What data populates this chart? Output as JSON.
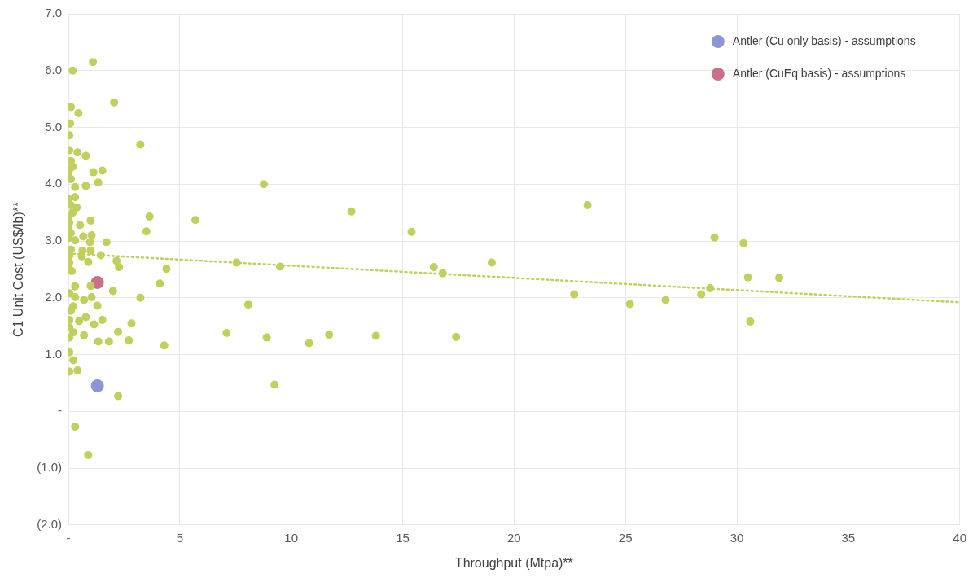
{
  "chart_data": {
    "type": "scatter",
    "xlabel": "Throughput (Mtpa)**",
    "ylabel": "C1 Unit Cost (US$/lb)**",
    "xlim": [
      0,
      40
    ],
    "xticks": [
      {
        "value": 0,
        "label": "-"
      },
      5,
      10,
      15,
      20,
      25,
      30,
      35,
      40
    ],
    "ylim": [
      -2,
      7
    ],
    "yticks": [
      {
        "value": -2,
        "label": "(2.0)"
      },
      {
        "value": -1,
        "label": "(1.0)"
      },
      {
        "value": 0,
        "label": "-"
      },
      {
        "value": 1,
        "label": "1.0"
      },
      {
        "value": 2,
        "label": "2.0"
      },
      {
        "value": 3,
        "label": "3.0"
      },
      {
        "value": 4,
        "label": "4.0"
      },
      {
        "value": 5,
        "label": "5.0"
      },
      {
        "value": 6,
        "label": "6.0"
      },
      {
        "value": 7,
        "label": "7.0"
      }
    ],
    "grid": true,
    "legend": "top right",
    "marker": "circle",
    "series": [
      {
        "color": "#c2cf5c",
        "x": [
          8.77,
          12.7,
          15.4,
          23.3,
          22.7,
          25.2,
          26.8,
          28.4,
          28.8,
          29.0,
          30.3,
          30.5,
          31.9,
          30.6,
          5.7,
          3.64,
          3.5,
          7.55,
          9.5,
          4.4,
          4.1,
          16.4,
          16.8,
          19.0,
          8.07,
          7.1,
          8.9,
          10.8,
          11.7,
          13.8,
          17.4,
          4.3,
          9.25,
          1.1,
          0.19,
          2.05,
          0.11,
          0.45,
          0.07,
          0.04,
          3.23,
          0.04,
          0.41,
          0.78,
          0.11,
          0.19,
          0.04,
          1.12,
          1.52,
          1.34,
          0,
          0.11,
          0.3,
          0.78,
          0,
          0.3,
          0.11,
          0.37,
          0.19,
          0,
          1.0,
          0,
          0.04,
          0.52,
          0.11,
          0.67,
          1.04,
          0,
          0.3,
          0.97,
          1.71,
          0.11,
          0.63,
          1.0,
          0.04,
          0.6,
          1.45,
          0.04,
          0.89,
          2.16,
          2.27,
          0.04,
          0.15,
          0.3,
          1.0,
          2.0,
          0.04,
          0.3,
          1.04,
          0.7,
          3.23,
          1.3,
          0.22,
          0.11,
          0.04,
          0.48,
          0.78,
          1.52,
          2.83,
          1.15,
          0.04,
          0.22,
          0.04,
          0.7,
          2.23,
          1.34,
          1.82,
          2.71,
          0.04,
          0.22,
          0.04,
          0.41,
          2.23,
          0.3,
          0.89
        ],
        "values": [
          4.0,
          3.52,
          3.16,
          3.63,
          2.06,
          1.89,
          1.96,
          2.06,
          2.17,
          3.06,
          2.96,
          2.36,
          2.35,
          1.58,
          3.37,
          3.43,
          3.17,
          2.62,
          2.55,
          2.51,
          2.25,
          2.54,
          2.43,
          2.62,
          1.88,
          1.38,
          1.3,
          1.2,
          1.35,
          1.33,
          1.31,
          1.16,
          0.47,
          6.15,
          6.0,
          5.44,
          5.36,
          5.25,
          5.07,
          4.86,
          4.7,
          4.6,
          4.56,
          4.5,
          4.41,
          4.31,
          4.26,
          4.21,
          4.24,
          4.03,
          4.17,
          4.09,
          3.95,
          3.97,
          3.74,
          3.77,
          3.63,
          3.59,
          3.5,
          3.41,
          3.36,
          3.23,
          3.32,
          3.28,
          3.14,
          3.08,
          3.1,
          3.05,
          3.01,
          2.98,
          2.98,
          2.85,
          2.83,
          2.83,
          2.74,
          2.73,
          2.75,
          2.62,
          2.63,
          2.65,
          2.54,
          2.51,
          2.47,
          2.2,
          2.21,
          2.12,
          2.08,
          2.01,
          2.01,
          1.96,
          2.0,
          1.86,
          1.85,
          1.77,
          1.61,
          1.59,
          1.66,
          1.61,
          1.55,
          1.53,
          1.48,
          1.39,
          1.3,
          1.34,
          1.4,
          1.23,
          1.23,
          1.25,
          1.04,
          0.9,
          0.7,
          0.72,
          0.27,
          -0.27,
          -0.77
        ]
      },
      {
        "type": "line",
        "color": "#c2cf5c",
        "line_style": "dotted",
        "marker": "none",
        "x": [
          0,
          40
        ],
        "values": [
          2.78,
          1.92
        ]
      },
      {
        "name": "Antler (Cu only basis) - assumptions",
        "color": "#8c96d6",
        "x": [
          1.3
        ],
        "values": [
          0.45
        ]
      },
      {
        "name": "Antler (CuEq basis) - assumptions",
        "color": "#c96f8a",
        "x": [
          1.3
        ],
        "values": [
          2.27
        ]
      }
    ]
  }
}
